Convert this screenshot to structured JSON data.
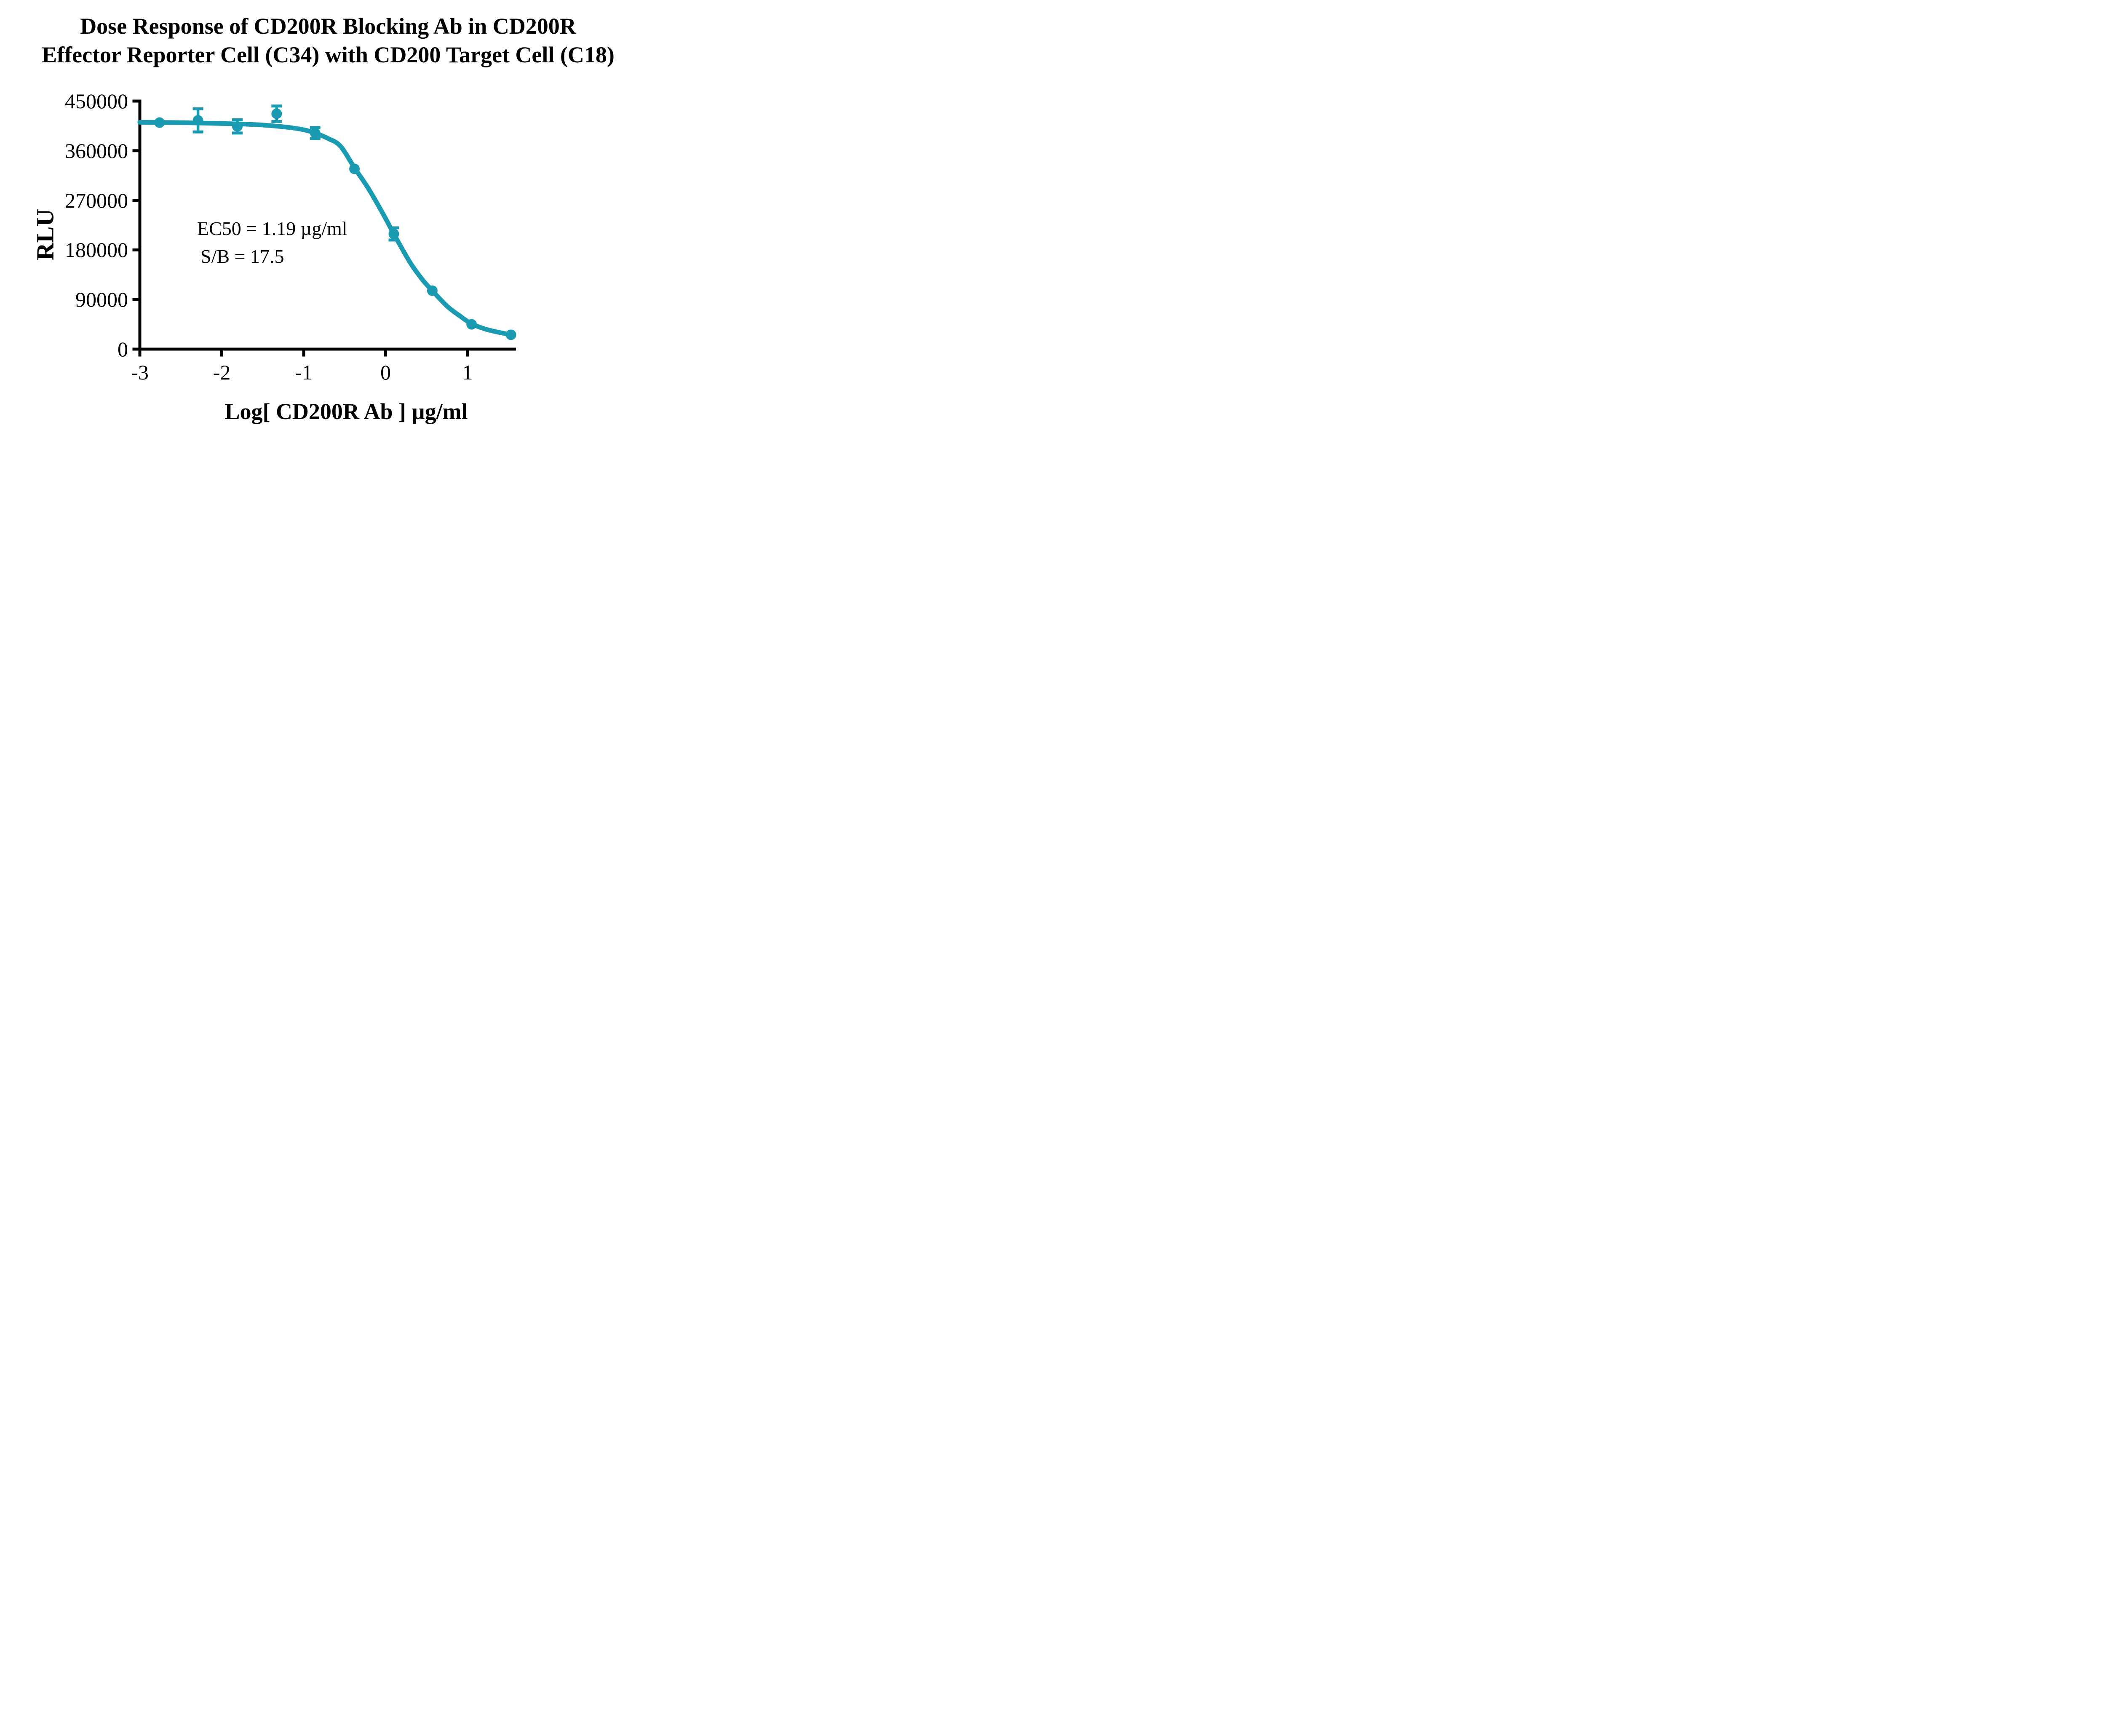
{
  "chart_data": {
    "type": "scatter",
    "title_line1": "Dose Response of CD200R Blocking Ab in CD200R",
    "title_line2": "Effector Reporter Cell (C34) with CD200 Target Cell (C18)",
    "xlabel": "Log[ CD200R Ab ] µg/ml",
    "ylabel": "RLU",
    "x_ticks": [
      -3,
      -2,
      -1,
      0,
      1
    ],
    "y_ticks": [
      0,
      90000,
      180000,
      270000,
      360000,
      450000
    ],
    "xlim": [
      -3,
      1.6
    ],
    "ylim": [
      0,
      450000
    ],
    "grid": false,
    "legend": "none",
    "series": [
      {
        "name": "CD200R Blocking Ab",
        "color": "#1A9BB2",
        "marker": "circle",
        "points": [
          {
            "x": -2.76,
            "y": 411000,
            "err": 0
          },
          {
            "x": -2.29,
            "y": 415000,
            "err": 21000
          },
          {
            "x": -1.81,
            "y": 404000,
            "err": 12000
          },
          {
            "x": -1.33,
            "y": 427000,
            "err": 14000
          },
          {
            "x": -0.86,
            "y": 392000,
            "err": 10000
          },
          {
            "x": -0.38,
            "y": 327000,
            "err": 0
          },
          {
            "x": 0.1,
            "y": 209000,
            "err": 11000
          },
          {
            "x": 0.57,
            "y": 106000,
            "err": 0
          },
          {
            "x": 1.05,
            "y": 45000,
            "err": 0
          },
          {
            "x": 1.53,
            "y": 26000,
            "err": 0
          }
        ],
        "fit_curve": [
          [
            -3.0,
            411500
          ],
          [
            -2.6,
            411000
          ],
          [
            -2.2,
            410000
          ],
          [
            -1.8,
            408500
          ],
          [
            -1.5,
            406500
          ],
          [
            -1.2,
            402500
          ],
          [
            -1.0,
            398000
          ],
          [
            -0.86,
            392000
          ],
          [
            -0.7,
            382000
          ],
          [
            -0.55,
            368000
          ],
          [
            -0.38,
            329000
          ],
          [
            -0.2,
            289000
          ],
          [
            0.0,
            237000
          ],
          [
            0.1,
            209000
          ],
          [
            0.3,
            157000
          ],
          [
            0.45,
            126000
          ],
          [
            0.57,
            106000
          ],
          [
            0.75,
            78000
          ],
          [
            0.9,
            61000
          ],
          [
            1.05,
            46000
          ],
          [
            1.25,
            35000
          ],
          [
            1.53,
            26000
          ]
        ]
      }
    ],
    "annotations": [
      "EC50 = 1.19 µg/ml",
      "S/B = 17.5"
    ],
    "ec50_ug_ml": 1.19,
    "s_over_b": 17.5,
    "axis_color": "#000000",
    "background_color": "#FFFFFF"
  }
}
